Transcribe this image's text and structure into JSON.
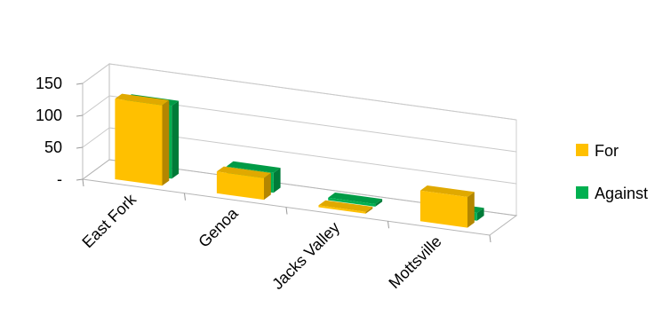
{
  "chart_data": {
    "type": "bar",
    "style": "3d-clustered-column",
    "categories": [
      "East Fork",
      "Genoa",
      "Jacks Valley",
      "Mottsville"
    ],
    "series": [
      {
        "name": "For",
        "values": [
          126,
          34,
          3,
          48
        ],
        "color": "#FFC000"
      },
      {
        "name": "Against",
        "values": [
          114,
          31,
          4,
          12
        ],
        "color": "#00B050"
      }
    ],
    "y_ticks": [
      "-",
      "50",
      "100",
      "150"
    ],
    "ylim": [
      0,
      150
    ],
    "grid": true,
    "legend_position": "right"
  }
}
